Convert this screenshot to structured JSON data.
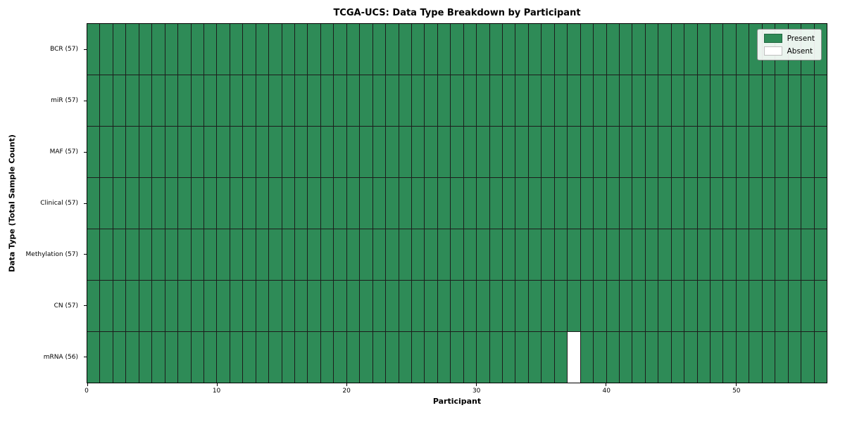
{
  "chart_data": {
    "type": "heatmap",
    "title": "TCGA-UCS: Data Type Breakdown by Participant",
    "xlabel": "Participant",
    "ylabel": "Data Type (Total Sample Count)",
    "rows": [
      "BCR (57)",
      "miR (57)",
      "MAF (57)",
      "Clinical (57)",
      "Methylation (57)",
      "CN (57)",
      "mRNA (56)"
    ],
    "n_participants": 57,
    "x_ticks": [
      0,
      10,
      20,
      30,
      40,
      50
    ],
    "absent_cells": [
      {
        "row": "mRNA (56)",
        "participant": 37
      }
    ],
    "legend": [
      {
        "label": "Present",
        "color": "#2e8b57"
      },
      {
        "label": "Absent",
        "color": "#ffffff"
      }
    ],
    "colors": {
      "present": "#2e8b57",
      "absent": "#ffffff",
      "grid_line": "#1c1c1c"
    },
    "layout": {
      "grid": "on",
      "legend_position": "upper right"
    }
  }
}
